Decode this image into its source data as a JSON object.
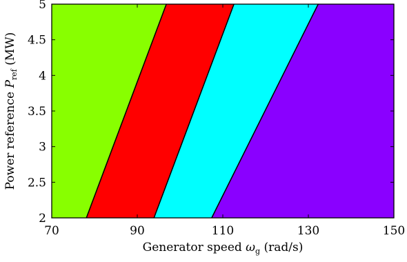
{
  "chart_data": {
    "type": "area",
    "title": "",
    "xlabel": {
      "text": "Generator speed ",
      "symbol": "ω",
      "subscript": "g",
      "unit": " (rad/s)"
    },
    "ylabel": {
      "text": "Power reference ",
      "symbol": "P",
      "subscript": "ref",
      "unit": " (MW)"
    },
    "xlim": [
      70,
      150
    ],
    "ylim": [
      2,
      5
    ],
    "x_ticks": [
      70,
      90,
      110,
      130,
      150
    ],
    "y_ticks": [
      2,
      2.5,
      3,
      3.5,
      4,
      4.5,
      5
    ],
    "grid": false,
    "legend": "none",
    "regions": [
      {
        "color": "#88ff00",
        "polygon": [
          [
            70,
            2
          ],
          [
            78.1,
            2
          ],
          [
            96.8,
            5
          ],
          [
            70,
            5
          ]
        ]
      },
      {
        "color": "#ff0000",
        "polygon": [
          [
            78.1,
            2
          ],
          [
            93.9,
            2
          ],
          [
            112.6,
            5
          ],
          [
            96.8,
            5
          ]
        ]
      },
      {
        "color": "#00ffff",
        "polygon": [
          [
            93.9,
            2
          ],
          [
            107.4,
            2
          ],
          [
            132.3,
            5
          ],
          [
            112.6,
            5
          ]
        ]
      },
      {
        "color": "#8a00ff",
        "polygon": [
          [
            107.4,
            2
          ],
          [
            150,
            2
          ],
          [
            150,
            5
          ],
          [
            132.3,
            5
          ]
        ]
      }
    ],
    "boundaries": [
      [
        [
          78.1,
          2
        ],
        [
          96.8,
          5
        ]
      ],
      [
        [
          93.9,
          2
        ],
        [
          112.6,
          5
        ]
      ],
      [
        [
          107.4,
          2
        ],
        [
          132.3,
          5
        ]
      ]
    ]
  }
}
